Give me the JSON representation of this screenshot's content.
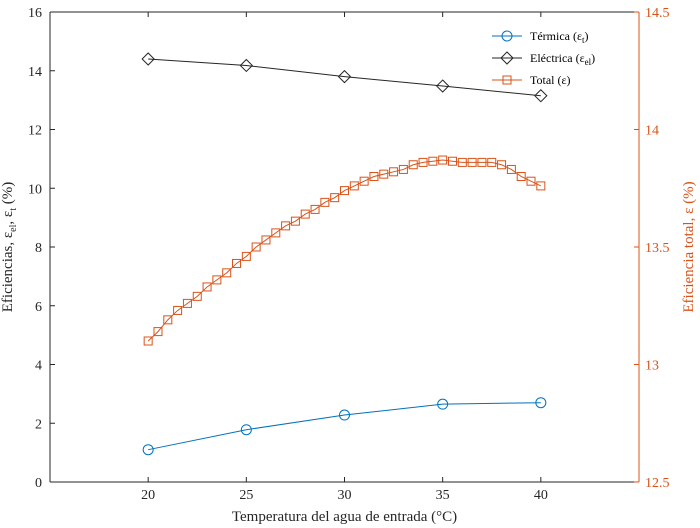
{
  "chart_data": {
    "type": "line",
    "xlabel": "Temperatura del agua de entrada (°C)",
    "ylabel_left": "Eficiencias, ε_el, ε_t (%)",
    "ylabel_right": "Eficiencia total, ε (%)",
    "xlim": [
      15,
      45
    ],
    "ylim_left": [
      0,
      16
    ],
    "ylim_right": [
      12.5,
      14.5
    ],
    "x_ticks": [
      "20",
      "25",
      "30",
      "35",
      "40"
    ],
    "y_ticks_left": [
      "0",
      "2",
      "4",
      "6",
      "8",
      "10",
      "12",
      "14",
      "16"
    ],
    "y_ticks_right": [
      "12.5",
      "13",
      "13.5",
      "14",
      "14.5"
    ],
    "grid": false,
    "legend_position": "top-right",
    "colors": {
      "termica": "#0072BD",
      "electrica": "#262626",
      "total": "#D95319",
      "axis_left": "#262626",
      "axis_right": "#D95319"
    },
    "series": [
      {
        "key": "termica",
        "legend_base": "Térmica (ε",
        "legend_sub": "t",
        "legend_close": ")",
        "axis": "left",
        "marker": "circle",
        "x": [
          20,
          25,
          30,
          35,
          40
        ],
        "y": [
          1.1,
          1.78,
          2.28,
          2.65,
          2.7
        ]
      },
      {
        "key": "electrica",
        "legend_base": "Eléctrica (ε",
        "legend_sub": "el",
        "legend_close": ")",
        "axis": "left",
        "marker": "diamond",
        "x": [
          20,
          25,
          30,
          35,
          40
        ],
        "y": [
          14.4,
          14.18,
          13.8,
          13.48,
          13.15
        ]
      },
      {
        "key": "total",
        "legend_base": "Total (ε",
        "legend_sub": "",
        "legend_close": ")",
        "axis": "right",
        "marker": "square",
        "x": [
          20,
          20.5,
          21,
          21.5,
          22,
          22.5,
          23,
          23.5,
          24,
          24.5,
          25,
          25.5,
          26,
          26.5,
          27,
          27.5,
          28,
          28.5,
          29,
          29.5,
          30,
          30.5,
          31,
          31.5,
          32,
          32.5,
          33,
          33.5,
          34,
          34.5,
          35,
          35.5,
          36,
          36.5,
          37,
          37.5,
          38,
          38.5,
          39,
          39.5,
          40
        ],
        "y": [
          13.1,
          13.14,
          13.19,
          13.23,
          13.26,
          13.29,
          13.33,
          13.36,
          13.39,
          13.43,
          13.46,
          13.5,
          13.53,
          13.56,
          13.59,
          13.61,
          13.64,
          13.66,
          13.69,
          13.71,
          13.74,
          13.76,
          13.78,
          13.8,
          13.81,
          13.82,
          13.83,
          13.85,
          13.86,
          13.865,
          13.87,
          13.865,
          13.86,
          13.86,
          13.86,
          13.86,
          13.85,
          13.83,
          13.8,
          13.78,
          13.76
        ]
      }
    ]
  }
}
